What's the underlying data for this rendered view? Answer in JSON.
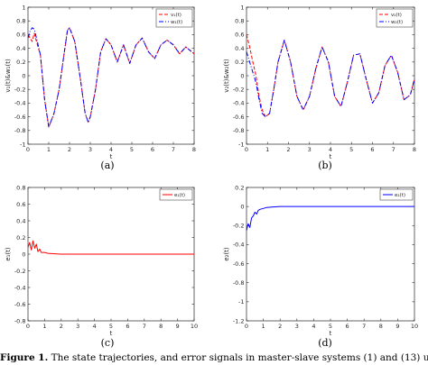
{
  "panel_labels": [
    "(a)",
    "(b)",
    "(c)",
    "(d)"
  ],
  "caption": {
    "label": "Figure 1.",
    "text": "The state trajectories, and error signals in master-slave systems (1) and (13) under hybri"
  },
  "colors": {
    "red": "#ff0000",
    "blue": "#0000ff",
    "axis": "#262626"
  },
  "chart_data": [
    {
      "type": "line",
      "xlabel": "t",
      "ylabel": "v₁(t)&w₁(t)",
      "xlim": [
        0,
        8
      ],
      "ylim": [
        -1,
        1
      ],
      "xticks": [
        0,
        1,
        2,
        3,
        4,
        5,
        6,
        7,
        8
      ],
      "yticks": [
        -1,
        -0.8,
        -0.6,
        -0.4,
        -0.2,
        0,
        0.2,
        0.4,
        0.6,
        0.8,
        1
      ],
      "grid": false,
      "legend": {
        "placement": "top-right",
        "entries": [
          "v₁(t)",
          "w₁(t)"
        ]
      },
      "series": [
        {
          "name": "v₁(t)",
          "color": "#ff0000",
          "style": "dashed",
          "x": [
            0,
            0.1,
            0.2,
            0.3,
            0.45,
            0.6,
            0.8,
            1.0,
            1.25,
            1.5,
            1.75,
            1.9,
            2.0,
            2.25,
            2.5,
            2.75,
            2.9,
            3.0,
            3.25,
            3.5,
            3.75,
            4.0,
            4.3,
            4.6,
            4.9,
            5.2,
            5.5,
            5.8,
            6.1,
            6.4,
            6.7,
            7.0,
            7.3,
            7.6,
            8.0
          ],
          "y": [
            0.6,
            0.55,
            0.5,
            0.62,
            0.45,
            0.3,
            -0.35,
            -0.75,
            -0.55,
            -0.2,
            0.35,
            0.66,
            0.7,
            0.5,
            0.0,
            -0.55,
            -0.68,
            -0.6,
            -0.2,
            0.35,
            0.54,
            0.45,
            0.2,
            0.45,
            0.18,
            0.45,
            0.55,
            0.35,
            0.25,
            0.45,
            0.52,
            0.45,
            0.32,
            0.42,
            0.32
          ]
        },
        {
          "name": "w₁(t)",
          "color": "#0000ff",
          "style": "dashdot",
          "x": [
            0,
            0.1,
            0.2,
            0.3,
            0.45,
            0.6,
            0.8,
            1.0,
            1.25,
            1.5,
            1.75,
            1.9,
            2.0,
            2.25,
            2.5,
            2.75,
            2.9,
            3.0,
            3.25,
            3.5,
            3.75,
            4.0,
            4.3,
            4.6,
            4.9,
            5.2,
            5.5,
            5.8,
            6.1,
            6.4,
            6.7,
            7.0,
            7.3,
            7.6,
            8.0
          ],
          "y": [
            0.55,
            0.65,
            0.7,
            0.68,
            0.5,
            0.3,
            -0.35,
            -0.75,
            -0.55,
            -0.2,
            0.35,
            0.66,
            0.7,
            0.5,
            0.0,
            -0.55,
            -0.68,
            -0.6,
            -0.2,
            0.35,
            0.54,
            0.45,
            0.2,
            0.45,
            0.18,
            0.45,
            0.55,
            0.35,
            0.25,
            0.45,
            0.52,
            0.45,
            0.32,
            0.42,
            0.32
          ]
        }
      ]
    },
    {
      "type": "line",
      "xlabel": "t",
      "ylabel": "v₂(t)&w₂(t)",
      "xlim": [
        0,
        8
      ],
      "ylim": [
        -1,
        1
      ],
      "xticks": [
        0,
        1,
        2,
        3,
        4,
        5,
        6,
        7,
        8
      ],
      "yticks": [
        -1,
        -0.8,
        -0.6,
        -0.4,
        -0.2,
        0,
        0.2,
        0.4,
        0.6,
        0.8,
        1
      ],
      "grid": false,
      "legend": {
        "placement": "top-right",
        "entries": [
          "v₂(t)",
          "w₂(t)"
        ]
      },
      "series": [
        {
          "name": "v₂(t)",
          "color": "#ff0000",
          "style": "dashed",
          "x": [
            0,
            0.15,
            0.3,
            0.45,
            0.6,
            0.75,
            0.9,
            1.1,
            1.3,
            1.5,
            1.8,
            2.1,
            2.4,
            2.7,
            3.0,
            3.3,
            3.6,
            3.9,
            4.2,
            4.5,
            4.8,
            5.1,
            5.4,
            5.7,
            6.0,
            6.3,
            6.6,
            6.9,
            7.2,
            7.5,
            7.8,
            8.0
          ],
          "y": [
            0.6,
            0.42,
            0.2,
            0.0,
            -0.3,
            -0.5,
            -0.6,
            -0.55,
            -0.2,
            0.2,
            0.52,
            0.2,
            -0.3,
            -0.5,
            -0.3,
            0.1,
            0.42,
            0.2,
            -0.3,
            -0.45,
            -0.1,
            0.3,
            0.32,
            -0.05,
            -0.4,
            -0.25,
            0.15,
            0.3,
            0.05,
            -0.35,
            -0.28,
            -0.05
          ]
        },
        {
          "name": "w₂(t)",
          "color": "#0000ff",
          "style": "dashdot",
          "x": [
            0,
            0.15,
            0.3,
            0.45,
            0.6,
            0.75,
            0.9,
            1.1,
            1.3,
            1.5,
            1.8,
            2.1,
            2.4,
            2.7,
            3.0,
            3.3,
            3.6,
            3.9,
            4.2,
            4.5,
            4.8,
            5.1,
            5.4,
            5.7,
            6.0,
            6.3,
            6.6,
            6.9,
            7.2,
            7.5,
            7.8,
            8.0
          ],
          "y": [
            0.35,
            0.2,
            0.05,
            -0.1,
            -0.35,
            -0.55,
            -0.6,
            -0.55,
            -0.2,
            0.2,
            0.52,
            0.2,
            -0.3,
            -0.5,
            -0.3,
            0.1,
            0.42,
            0.2,
            -0.3,
            -0.45,
            -0.1,
            0.3,
            0.32,
            -0.05,
            -0.4,
            -0.25,
            0.15,
            0.3,
            0.05,
            -0.35,
            -0.28,
            -0.05
          ]
        }
      ]
    },
    {
      "type": "line",
      "xlabel": "t",
      "ylabel": "e₁(t)",
      "xlim": [
        0,
        10
      ],
      "ylim": [
        -0.8,
        0.8
      ],
      "xticks": [
        0,
        1,
        2,
        3,
        4,
        5,
        6,
        7,
        8,
        9,
        10
      ],
      "yticks": [
        -0.8,
        -0.6,
        -0.4,
        -0.2,
        0,
        0.2,
        0.4,
        0.6,
        0.8
      ],
      "grid": false,
      "legend": {
        "placement": "top-right",
        "entries": [
          "e₁(t)"
        ]
      },
      "series": [
        {
          "name": "e₁(t)",
          "color": "#ff0000",
          "style": "solid",
          "x": [
            0,
            0.1,
            0.2,
            0.3,
            0.4,
            0.5,
            0.6,
            0.7,
            0.8,
            1.0,
            1.2,
            1.5,
            2.0,
            2.5,
            3,
            4,
            5,
            6,
            7,
            8,
            9,
            10
          ],
          "y": [
            0.08,
            0.14,
            0.05,
            0.16,
            0.07,
            0.12,
            0.03,
            0.06,
            0.02,
            0.02,
            0.01,
            0.005,
            0.0,
            0.0,
            0.0,
            0.0,
            0.0,
            0.0,
            0.0,
            0.0,
            0.0,
            0.0
          ]
        }
      ]
    },
    {
      "type": "line",
      "xlabel": "t",
      "ylabel": "e₂(t)",
      "xlim": [
        0,
        10
      ],
      "ylim": [
        -1.2,
        0.2
      ],
      "xticks": [
        0,
        1,
        2,
        3,
        4,
        5,
        6,
        7,
        8,
        9,
        10
      ],
      "yticks": [
        -1.2,
        -1,
        -0.8,
        -0.6,
        -0.4,
        -0.2,
        0,
        0.2
      ],
      "grid": false,
      "legend": {
        "placement": "top-right",
        "entries": [
          "e₂(t)"
        ]
      },
      "series": [
        {
          "name": "e₂(t)",
          "color": "#0000ff",
          "style": "solid",
          "x": [
            0,
            0.1,
            0.2,
            0.3,
            0.4,
            0.5,
            0.6,
            0.7,
            0.8,
            1.0,
            1.2,
            1.5,
            2.0,
            2.5,
            3,
            4,
            5,
            6,
            7,
            8,
            9,
            10
          ],
          "y": [
            -0.25,
            -0.18,
            -0.22,
            -0.12,
            -0.1,
            -0.06,
            -0.08,
            -0.04,
            -0.03,
            -0.02,
            -0.01,
            -0.005,
            0.0,
            0.0,
            0.0,
            0.0,
            0.0,
            0.0,
            0.0,
            0.0,
            0.0,
            0.0
          ]
        }
      ]
    }
  ]
}
